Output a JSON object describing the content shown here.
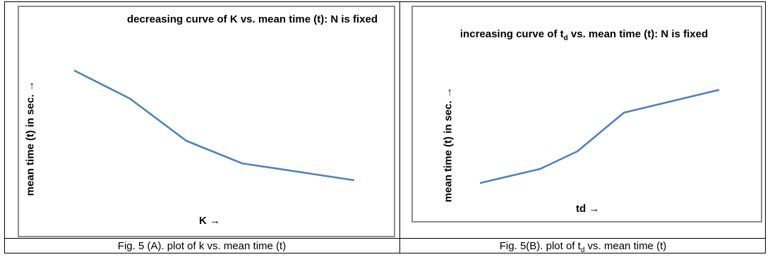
{
  "chart_data": [
    {
      "type": "line",
      "title": "decreasing curve of K vs. mean time (t): N is fixed",
      "ylabel": "mean time (t) in sec. →",
      "xlabel": "K →",
      "series": [
        {
          "values": [
            100,
            80,
            50,
            34,
            22
          ],
          "color": "#4f81bd"
        }
      ],
      "ylim": [
        0,
        110
      ],
      "grid": false,
      "legend": "none"
    },
    {
      "type": "line",
      "title_main": "increasing curve of t",
      "title_sub": "d",
      "title_rest": " vs. mean time (t): N is fixed",
      "ylabel": "mean time (t)  in sec. →",
      "xlabel": "td →",
      "series": [
        {
          "values": [
            12,
            20,
            30,
            52,
            65
          ],
          "color": "#4f81bd"
        }
      ],
      "ylim": [
        0,
        80
      ],
      "grid": false,
      "legend": "none"
    }
  ],
  "captions": {
    "a": "Fig. 5 (A). plot of k vs. mean time (t)",
    "b_main": "Fig. 5(B). plot of t",
    "b_sub": "d",
    "b_rest": " vs. mean time (t)"
  }
}
